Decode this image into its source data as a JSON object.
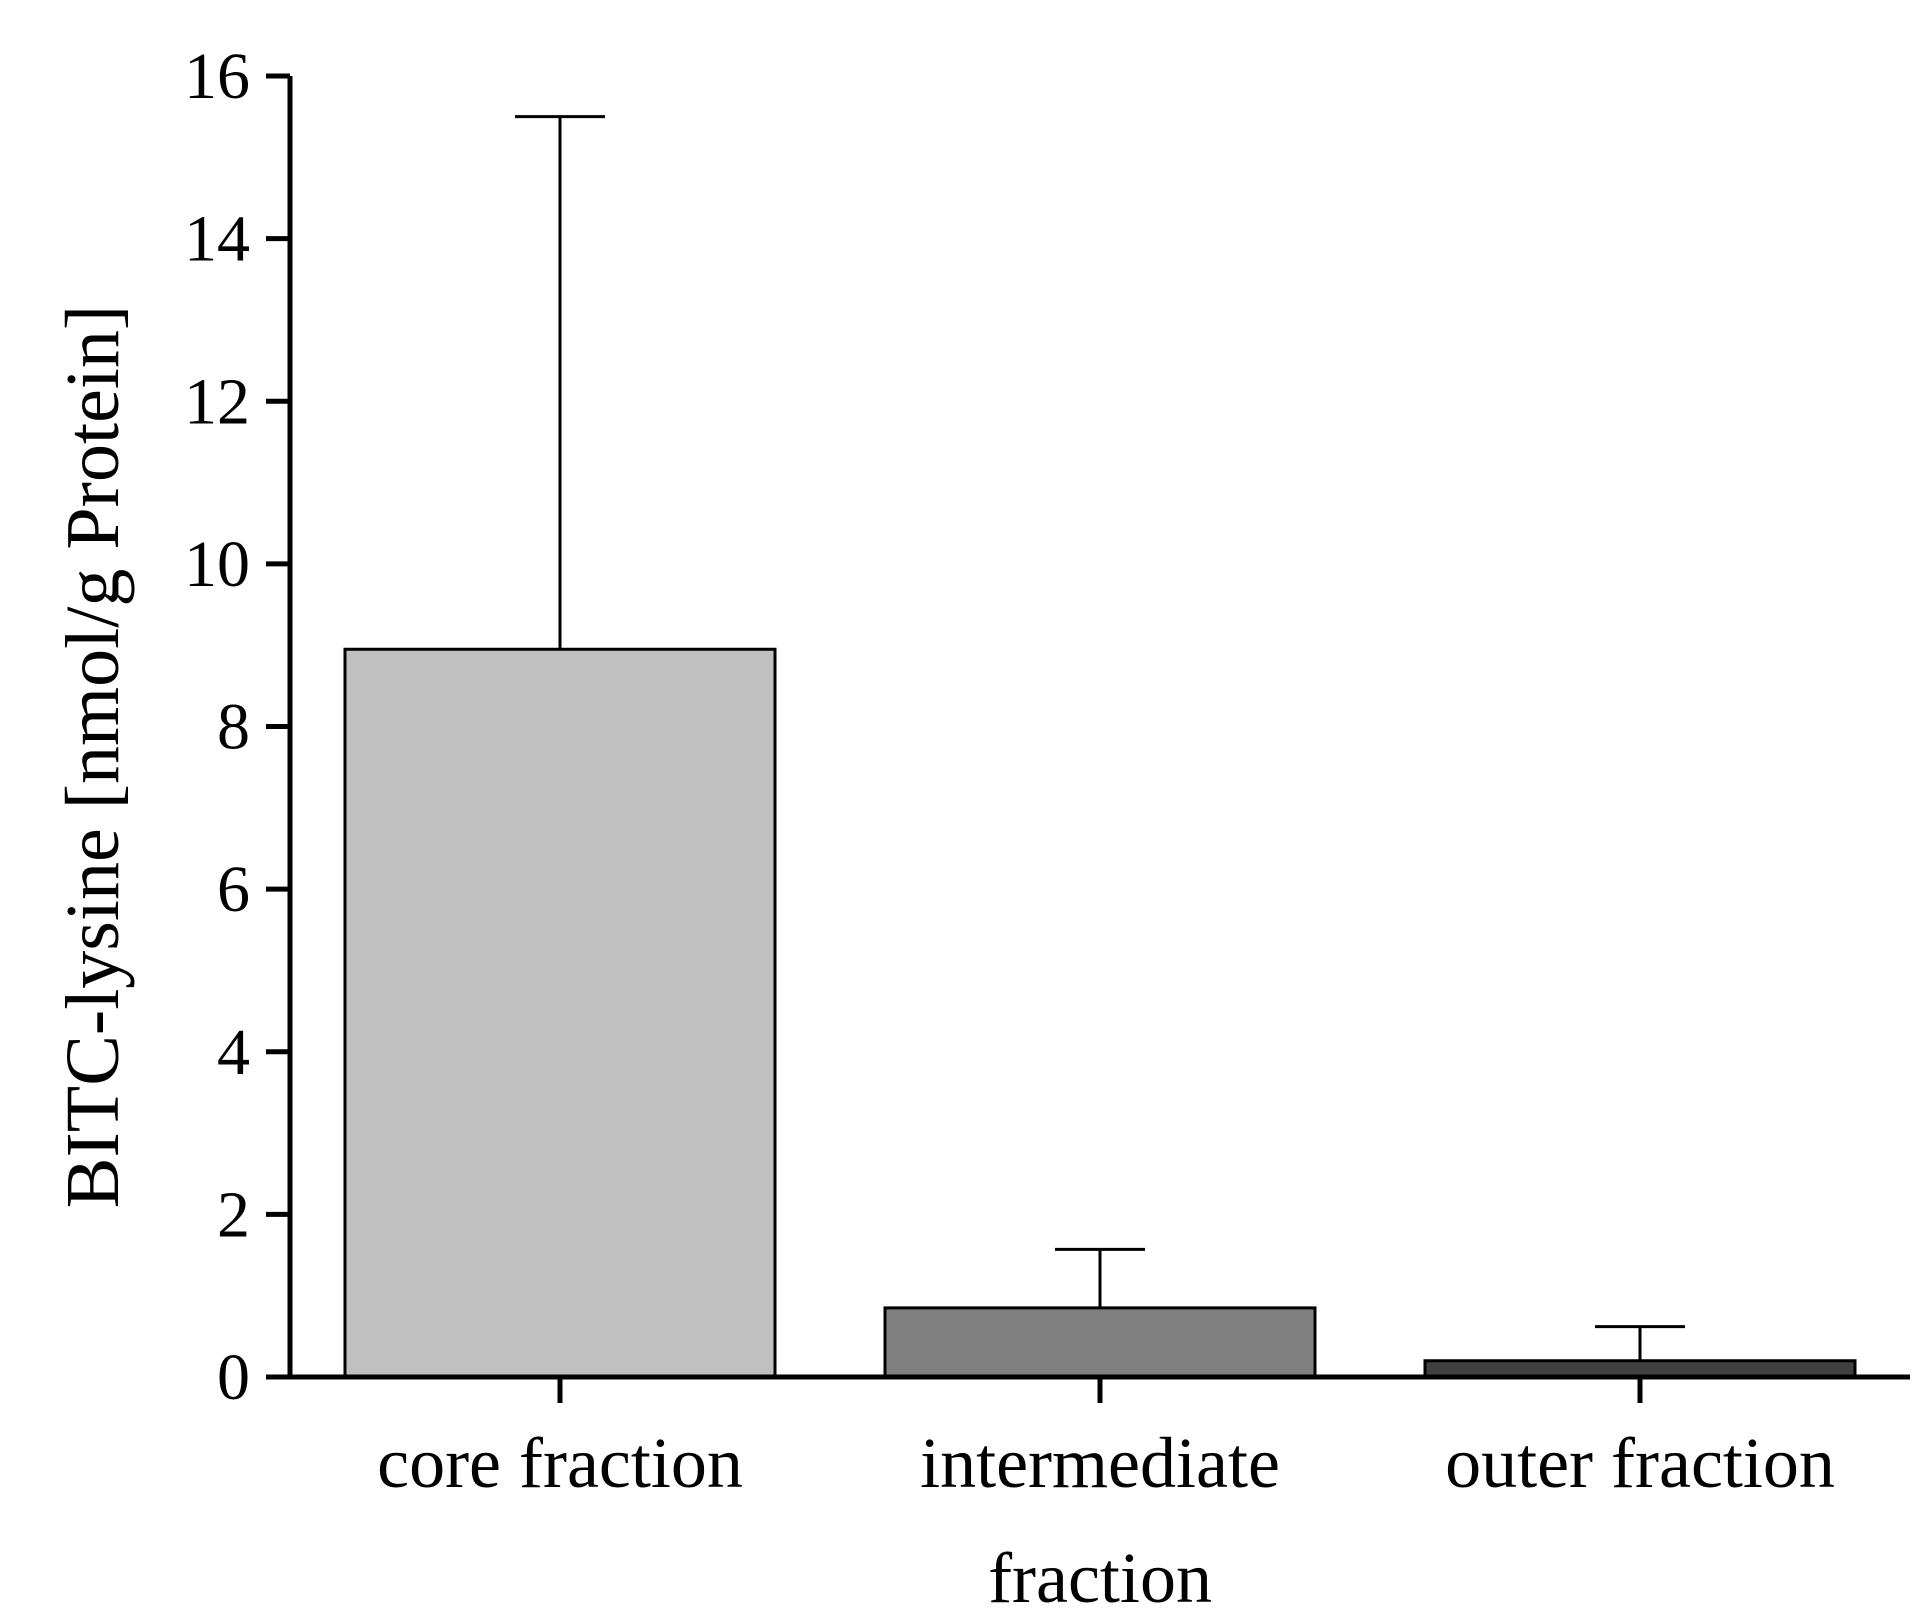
{
  "chart_data": {
    "type": "bar",
    "categories": [
      [
        "core fraction"
      ],
      [
        "intermediate",
        "fraction"
      ],
      [
        "outer fraction"
      ]
    ],
    "values": [
      8.95,
      0.85,
      0.2
    ],
    "errors": [
      6.55,
      0.72,
      0.42
    ],
    "bar_colors": [
      "#c0c0c0",
      "#808080",
      "#404040"
    ],
    "title": "",
    "xlabel": "",
    "ylabel": "BITC-lysine [nmol/g Protein]",
    "ylim": [
      0,
      16
    ],
    "yticks": [
      0,
      2,
      4,
      6,
      8,
      10,
      12,
      14,
      16
    ],
    "grid": false,
    "legend": "none"
  }
}
